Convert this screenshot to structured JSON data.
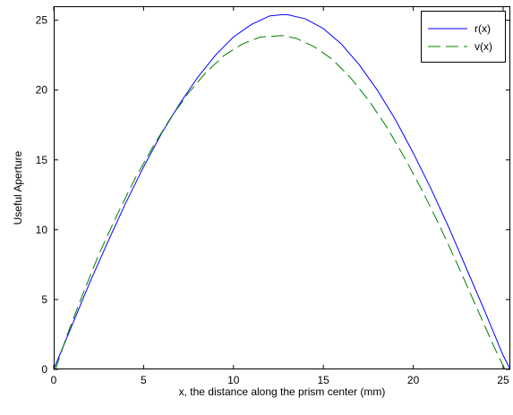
{
  "chart_data": {
    "type": "line",
    "xlabel": "x, the distance along the prism center (mm)",
    "ylabel": "Useful Aperture",
    "xlim": [
      0,
      25.4
    ],
    "ylim": [
      0,
      26
    ],
    "xticks": [
      0,
      5,
      10,
      15,
      20,
      25
    ],
    "yticks": [
      0,
      5,
      10,
      15,
      20,
      25
    ],
    "grid": false,
    "legend_position": "top-right",
    "series": [
      {
        "name": "r(x)",
        "color": "#0000ff",
        "line_style": "solid",
        "x": [
          0,
          1,
          2,
          3,
          4,
          5,
          6,
          7,
          8,
          9,
          10,
          11,
          12,
          12.7,
          13,
          14,
          15,
          16,
          17,
          18,
          19,
          20,
          21,
          22,
          23,
          24,
          25,
          25.4
        ],
        "y": [
          0,
          3.1,
          6.2,
          9.1,
          11.9,
          14.5,
          16.9,
          19.0,
          20.9,
          22.5,
          23.8,
          24.7,
          25.3,
          25.4,
          25.4,
          25.1,
          24.4,
          23.3,
          21.8,
          20.0,
          17.9,
          15.5,
          12.9,
          10.1,
          7.1,
          4.1,
          1.0,
          0
        ]
      },
      {
        "name": "v(x)",
        "color": "#008000",
        "line_style": "dashed",
        "x": [
          0.1,
          0.7,
          1.5,
          2.5,
          3.5,
          4.5,
          5.5,
          6.5,
          7.5,
          8.5,
          9.5,
          10.5,
          11.5,
          12.7,
          13.5,
          14.5,
          15.5,
          16.5,
          17.5,
          18.5,
          19.5,
          20.5,
          21.5,
          22.5,
          23.5,
          24.5,
          25.1
        ],
        "y": [
          0,
          2.3,
          5.0,
          8.2,
          11.0,
          13.6,
          15.9,
          18.0,
          19.8,
          21.3,
          22.5,
          23.3,
          23.8,
          23.9,
          23.7,
          23.1,
          22.2,
          20.9,
          19.3,
          17.4,
          15.2,
          12.8,
          10.2,
          7.4,
          4.5,
          1.6,
          0
        ]
      }
    ]
  }
}
